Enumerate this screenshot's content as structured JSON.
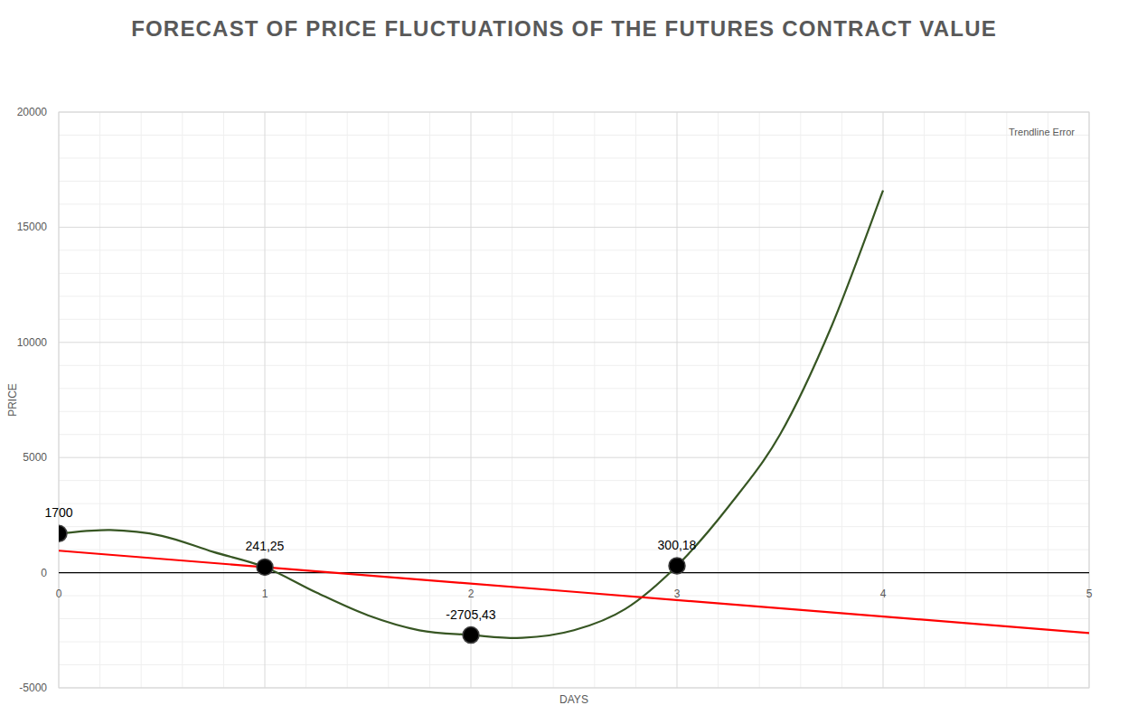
{
  "chart_data": {
    "type": "line",
    "title": "FORECAST OF PRICE FLUCTUATIONS OF THE FUTURES CONTRACT VALUE",
    "x_label": "DAYS",
    "y_label": "PRICE",
    "xlim": [
      0,
      5
    ],
    "xticks": [
      0,
      1,
      2,
      3,
      4,
      5
    ],
    "ylim": [
      -5000,
      20000
    ],
    "yticks": [
      -5000,
      0,
      5000,
      10000,
      15000,
      20000
    ],
    "grid": true,
    "legend": "top-right",
    "series": [
      {
        "type": "line",
        "color": "#375623",
        "marker": "none",
        "line_style": "solid",
        "x": [
          0,
          0.25,
          0.5,
          0.75,
          1,
          1.25,
          1.5,
          1.75,
          2,
          2.25,
          2.5,
          2.75,
          3,
          3.25,
          3.5,
          3.75,
          4
        ],
        "values": [
          1700,
          1850,
          1600,
          900,
          241.25,
          -860,
          -1850,
          -2500,
          -2705.43,
          -2830,
          -2500,
          -1570,
          300.18,
          2870,
          6000,
          10700,
          16600
        ]
      },
      {
        "type": "line",
        "name": "Trendline Error",
        "color": "#ff0000",
        "marker": "none",
        "line_style": "solid",
        "x": [
          0,
          5
        ],
        "values": [
          956,
          -2617
        ]
      },
      {
        "type": "scatter",
        "color": "#000000",
        "marker": "circle",
        "data_labels": true,
        "x": [
          0,
          1,
          2,
          3
        ],
        "values": [
          1700,
          241.25,
          -2705.43,
          300.18
        ],
        "value_labels": [
          "1700",
          "241,25",
          "-2705,43",
          "300,18"
        ]
      }
    ]
  }
}
